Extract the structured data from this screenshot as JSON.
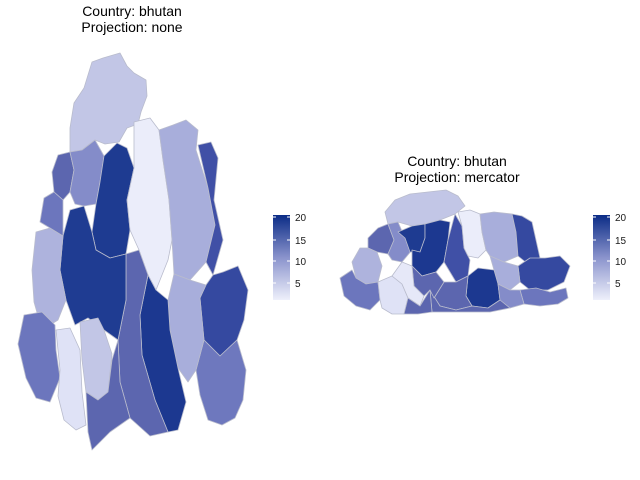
{
  "maps": [
    {
      "title_country": "Country: bhutan",
      "title_projection": "Projection: none",
      "legend": {
        "ticks": [
          5,
          10,
          15,
          20
        ],
        "min": 1,
        "max": 20,
        "color_low": "#eef0fb",
        "color_high": "#0b2c86"
      }
    },
    {
      "title_country": "Country: bhutan",
      "title_projection": "Projection: mercator",
      "legend": {
        "ticks": [
          5,
          10,
          15,
          20
        ],
        "min": 1,
        "max": 20,
        "color_low": "#eef0fb",
        "color_high": "#0b2c86"
      }
    }
  ],
  "colors": {
    "border": "#b9bccd",
    "background": "#ffffff"
  }
}
